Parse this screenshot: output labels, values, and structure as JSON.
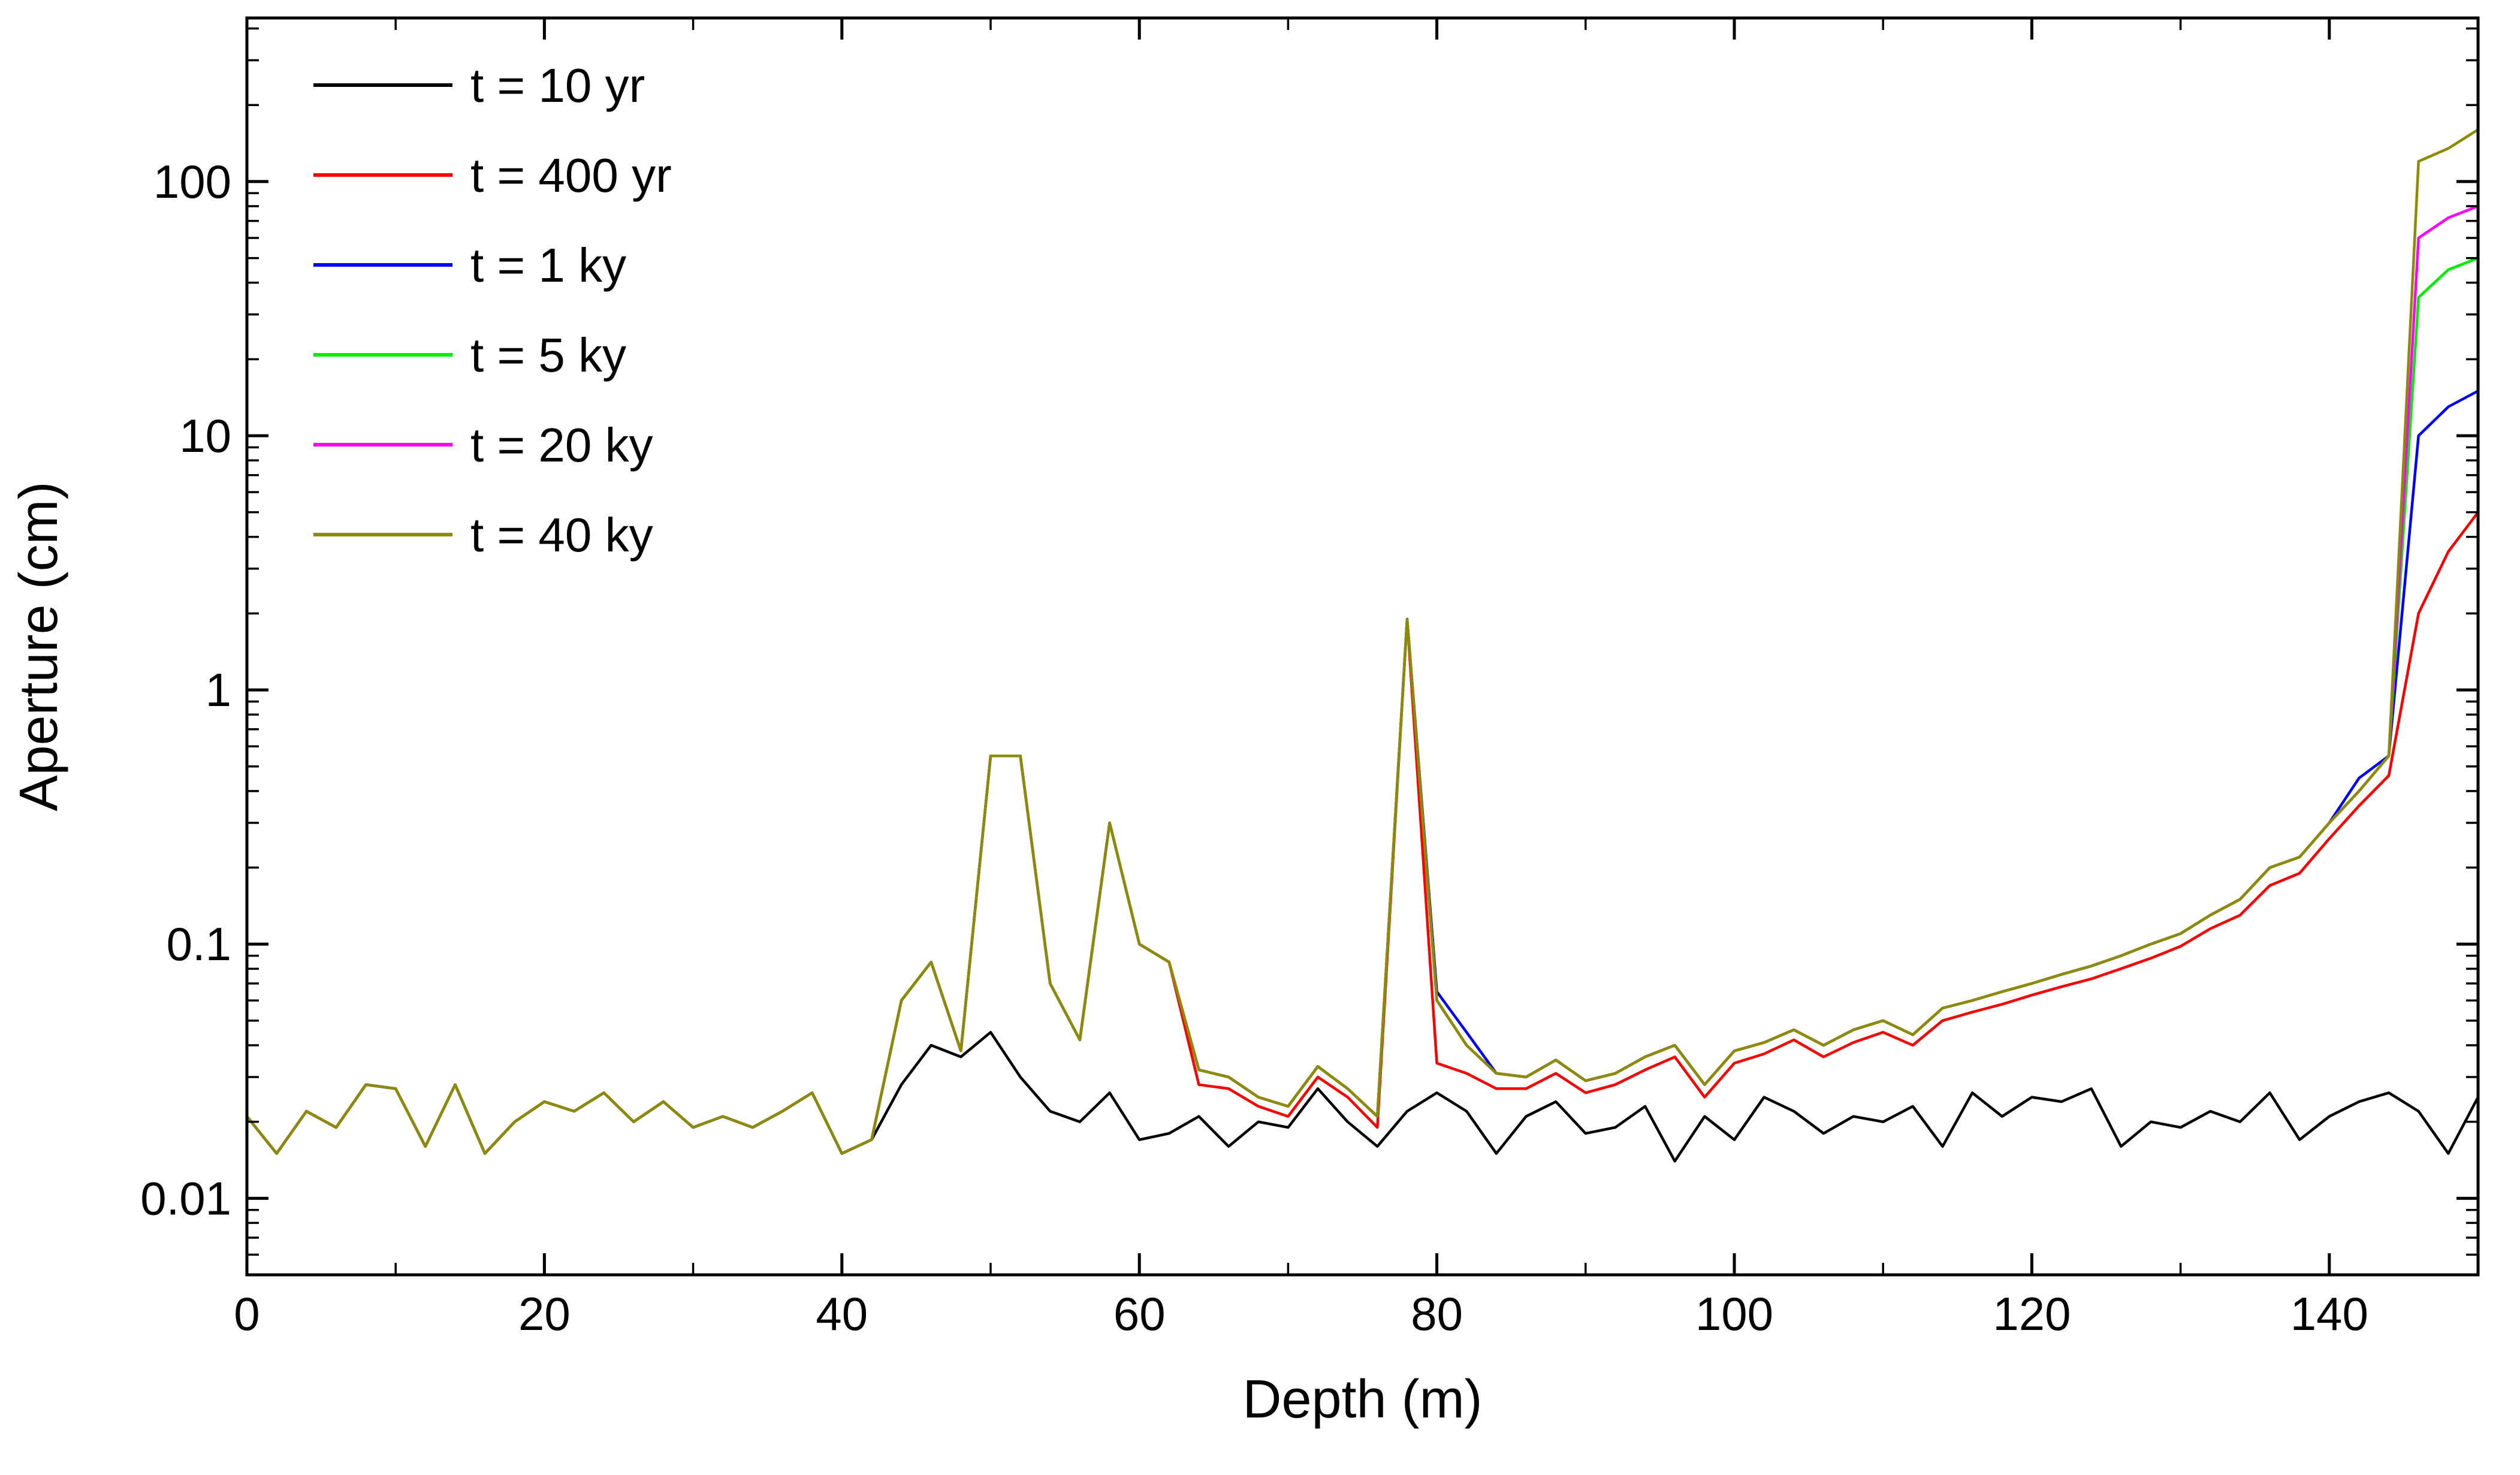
{
  "figure": {
    "background": "#ffffff",
    "frame_color": "#000000"
  },
  "chart_data": {
    "type": "line",
    "title": "",
    "xlabel": "Depth (m)",
    "ylabel": "Aperture (cm)",
    "grid": false,
    "legend_position": "top-left",
    "x_axis": {
      "min": 0,
      "max": 150,
      "major_ticks": [
        0,
        20,
        40,
        60,
        80,
        100,
        120,
        140
      ],
      "minor_ticks": [
        10,
        30,
        50,
        70,
        90,
        110,
        130
      ],
      "tick_labels": [
        "0",
        "20",
        "40",
        "60",
        "80",
        "100",
        "120",
        "140"
      ]
    },
    "y_axis": {
      "scale": "log",
      "min": 0.005,
      "max": 440,
      "major_ticks": [
        0.01,
        0.1,
        1,
        10,
        100
      ],
      "tick_labels": [
        "0.01",
        "0.1",
        "1",
        "10",
        "100"
      ]
    },
    "x": [
      0,
      2,
      4,
      6,
      8,
      10,
      12,
      14,
      16,
      18,
      20,
      22,
      24,
      26,
      28,
      30,
      32,
      34,
      36,
      38,
      40,
      42,
      44,
      46,
      48,
      50,
      52,
      54,
      56,
      58,
      60,
      62,
      64,
      66,
      68,
      70,
      72,
      74,
      76,
      78,
      80,
      82,
      84,
      86,
      88,
      90,
      92,
      94,
      96,
      98,
      100,
      102,
      104,
      106,
      108,
      110,
      112,
      114,
      116,
      118,
      120,
      122,
      124,
      126,
      128,
      130,
      132,
      134,
      136,
      138,
      140,
      142,
      144,
      146,
      148,
      150
    ],
    "series": [
      {
        "name": "t = 10 yr",
        "color": "#000000",
        "values": [
          0.021,
          0.015,
          0.022,
          0.019,
          0.028,
          0.027,
          0.016,
          0.028,
          0.015,
          0.02,
          0.024,
          0.022,
          0.026,
          0.02,
          0.024,
          0.019,
          0.021,
          0.019,
          0.022,
          0.026,
          0.015,
          0.017,
          0.028,
          0.04,
          0.036,
          0.045,
          0.03,
          0.022,
          0.02,
          0.026,
          0.017,
          0.018,
          0.021,
          0.016,
          0.02,
          0.019,
          0.027,
          0.02,
          0.016,
          0.022,
          0.026,
          0.022,
          0.015,
          0.021,
          0.024,
          0.018,
          0.019,
          0.023,
          0.014,
          0.021,
          0.017,
          0.025,
          0.022,
          0.018,
          0.021,
          0.02,
          0.023,
          0.016,
          0.026,
          0.021,
          0.025,
          0.024,
          0.027,
          0.016,
          0.02,
          0.019,
          0.022,
          0.02,
          0.026,
          0.017,
          0.021,
          0.024,
          0.026,
          0.022,
          0.015,
          0.025
        ]
      },
      {
        "name": "t = 400 yr",
        "color": "#ff0000",
        "values": [
          0.021,
          0.015,
          0.022,
          0.019,
          0.028,
          0.027,
          0.016,
          0.028,
          0.015,
          0.02,
          0.024,
          0.022,
          0.026,
          0.02,
          0.024,
          0.019,
          0.021,
          0.019,
          0.022,
          0.026,
          0.015,
          0.017,
          0.06,
          0.085,
          0.038,
          0.55,
          0.55,
          0.07,
          0.042,
          0.3,
          0.1,
          0.085,
          0.028,
          0.027,
          0.023,
          0.021,
          0.03,
          0.025,
          0.019,
          1.9,
          0.034,
          0.031,
          0.027,
          0.027,
          0.031,
          0.026,
          0.028,
          0.032,
          0.036,
          0.025,
          0.034,
          0.037,
          0.042,
          0.036,
          0.041,
          0.045,
          0.04,
          0.05,
          0.054,
          0.058,
          0.063,
          0.068,
          0.073,
          0.08,
          0.088,
          0.098,
          0.115,
          0.13,
          0.17,
          0.19,
          0.26,
          0.35,
          0.46,
          2.0,
          3.5,
          5.0
        ]
      },
      {
        "name": "t = 1 ky",
        "color": "#0000ff",
        "values": [
          0.021,
          0.015,
          0.022,
          0.019,
          0.028,
          0.027,
          0.016,
          0.028,
          0.015,
          0.02,
          0.024,
          0.022,
          0.026,
          0.02,
          0.024,
          0.019,
          0.021,
          0.019,
          0.022,
          0.026,
          0.015,
          0.017,
          0.06,
          0.085,
          0.038,
          0.55,
          0.55,
          0.07,
          0.042,
          0.3,
          0.1,
          0.085,
          0.032,
          0.03,
          0.025,
          0.023,
          0.033,
          0.027,
          0.021,
          1.9,
          0.065,
          0.045,
          0.031,
          0.03,
          0.035,
          0.029,
          0.031,
          0.036,
          0.04,
          0.028,
          0.038,
          0.041,
          0.046,
          0.04,
          0.046,
          0.05,
          0.044,
          0.056,
          0.06,
          0.065,
          0.07,
          0.076,
          0.082,
          0.09,
          0.1,
          0.11,
          0.13,
          0.15,
          0.2,
          0.22,
          0.3,
          0.45,
          0.55,
          10,
          13,
          15
        ]
      },
      {
        "name": "t = 5 ky",
        "color": "#00ee00",
        "values": [
          0.021,
          0.015,
          0.022,
          0.019,
          0.028,
          0.027,
          0.016,
          0.028,
          0.015,
          0.02,
          0.024,
          0.022,
          0.026,
          0.02,
          0.024,
          0.019,
          0.021,
          0.019,
          0.022,
          0.026,
          0.015,
          0.017,
          0.06,
          0.085,
          0.038,
          0.55,
          0.55,
          0.07,
          0.042,
          0.3,
          0.1,
          0.085,
          0.032,
          0.03,
          0.025,
          0.023,
          0.033,
          0.027,
          0.021,
          1.9,
          0.06,
          0.04,
          0.031,
          0.03,
          0.035,
          0.029,
          0.031,
          0.036,
          0.04,
          0.028,
          0.038,
          0.041,
          0.046,
          0.04,
          0.046,
          0.05,
          0.044,
          0.056,
          0.06,
          0.065,
          0.07,
          0.076,
          0.082,
          0.09,
          0.1,
          0.11,
          0.13,
          0.15,
          0.2,
          0.22,
          0.3,
          0.4,
          0.55,
          35,
          45,
          50
        ]
      },
      {
        "name": "t = 20 ky",
        "color": "#ff00ff",
        "values": [
          0.021,
          0.015,
          0.022,
          0.019,
          0.028,
          0.027,
          0.016,
          0.028,
          0.015,
          0.02,
          0.024,
          0.022,
          0.026,
          0.02,
          0.024,
          0.019,
          0.021,
          0.019,
          0.022,
          0.026,
          0.015,
          0.017,
          0.06,
          0.085,
          0.038,
          0.55,
          0.55,
          0.07,
          0.042,
          0.3,
          0.1,
          0.085,
          0.032,
          0.03,
          0.025,
          0.023,
          0.033,
          0.027,
          0.021,
          1.9,
          0.06,
          0.04,
          0.031,
          0.03,
          0.035,
          0.029,
          0.031,
          0.036,
          0.04,
          0.028,
          0.038,
          0.041,
          0.046,
          0.04,
          0.046,
          0.05,
          0.044,
          0.056,
          0.06,
          0.065,
          0.07,
          0.076,
          0.082,
          0.09,
          0.1,
          0.11,
          0.13,
          0.15,
          0.2,
          0.22,
          0.3,
          0.4,
          0.55,
          60,
          72,
          80
        ]
      },
      {
        "name": "t = 40 ky",
        "color": "#8c8c00",
        "values": [
          0.021,
          0.015,
          0.022,
          0.019,
          0.028,
          0.027,
          0.016,
          0.028,
          0.015,
          0.02,
          0.024,
          0.022,
          0.026,
          0.02,
          0.024,
          0.019,
          0.021,
          0.019,
          0.022,
          0.026,
          0.015,
          0.017,
          0.06,
          0.085,
          0.038,
          0.55,
          0.55,
          0.07,
          0.042,
          0.3,
          0.1,
          0.085,
          0.032,
          0.03,
          0.025,
          0.023,
          0.033,
          0.027,
          0.021,
          1.9,
          0.06,
          0.04,
          0.031,
          0.03,
          0.035,
          0.029,
          0.031,
          0.036,
          0.04,
          0.028,
          0.038,
          0.041,
          0.046,
          0.04,
          0.046,
          0.05,
          0.044,
          0.056,
          0.06,
          0.065,
          0.07,
          0.076,
          0.082,
          0.09,
          0.1,
          0.11,
          0.13,
          0.15,
          0.2,
          0.22,
          0.3,
          0.4,
          0.55,
          120,
          135,
          160
        ]
      }
    ]
  }
}
